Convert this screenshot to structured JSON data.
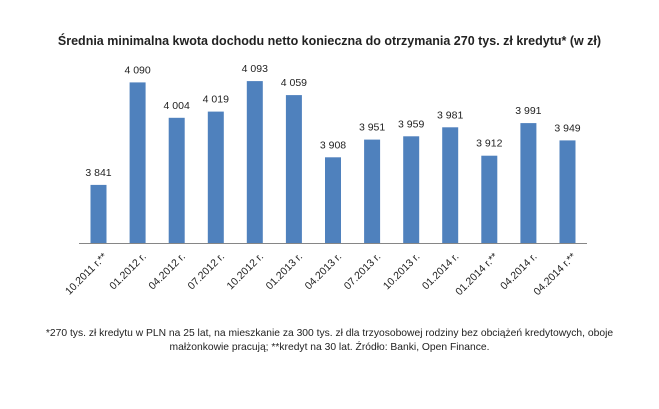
{
  "chart_data": {
    "type": "bar",
    "title": "Średnia minimalna kwota dochodu netto konieczna do otrzymania 270 tys. zł kredytu* (w zł)",
    "xlabel": "",
    "ylabel": "",
    "categories": [
      "10.2011 r.**",
      "01.2012 r.",
      "04.2012 r.",
      "07.2012 r.",
      "10.2012 r.",
      "01.2013 r.",
      "04.2013 r.",
      "07.2013 r.",
      "10.2013 r.",
      "01.2014 r.",
      "01.2014 r.**",
      "04.2014 r.",
      "04.2014 r.**"
    ],
    "values": [
      3841,
      4090,
      4004,
      4019,
      4093,
      4059,
      3908,
      3951,
      3959,
      3981,
      3912,
      3991,
      3949
    ],
    "value_labels": [
      "3 841",
      "4 090",
      "4 004",
      "4 019",
      "4 093",
      "4 059",
      "3 908",
      "3 951",
      "3 959",
      "3 981",
      "3 912",
      "3 991",
      "3 949"
    ],
    "ylim": [
      3700,
      4120
    ],
    "grid": false,
    "legend": "none",
    "bar_color": "#4F81BD",
    "axis_color": "#868686",
    "footnote": "*270 tys. zł kredytu w PLN na 25 lat, na mieszkanie za 300 tys. zł dla trzyosobowej rodziny bez obciążeń kredytowych, oboje małżonkowie pracują; **kredyt na 30 lat. Źródło: Banki, Open Finance."
  }
}
